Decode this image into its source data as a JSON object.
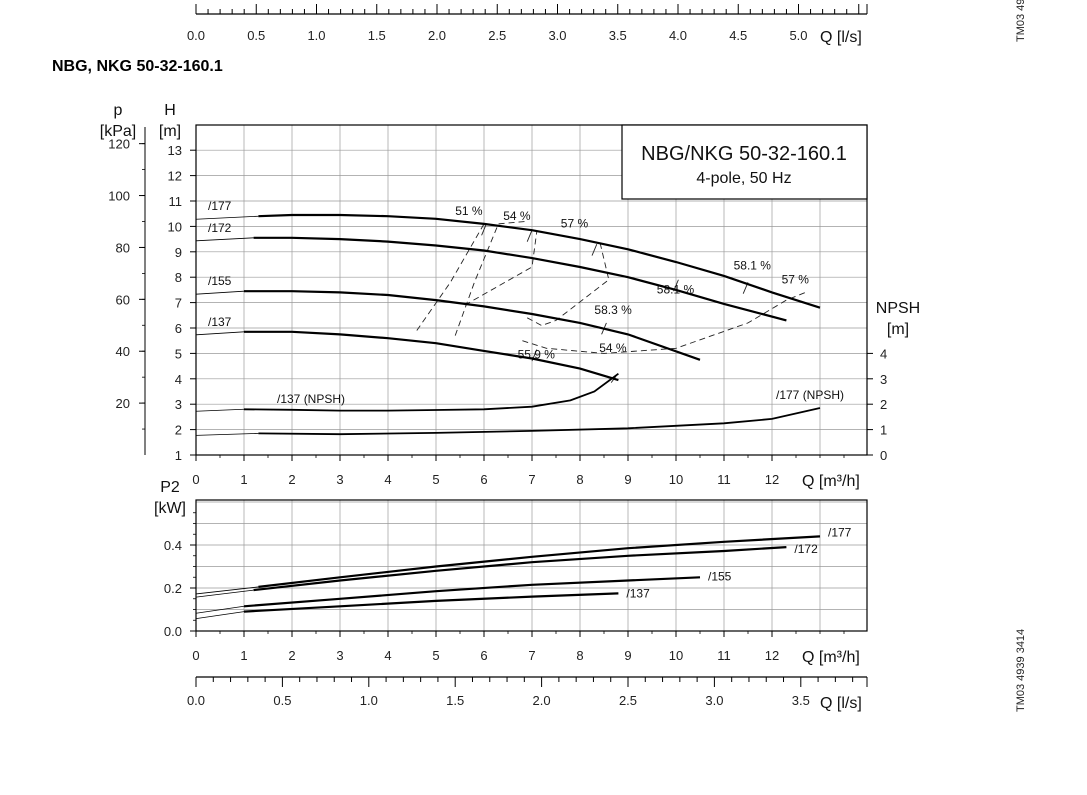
{
  "page": {
    "title": "NBG, NKG 50-32-160.1",
    "top_scale_ticks": [
      "0.0",
      "0.5",
      "1.0",
      "1.5",
      "2.0",
      "2.5",
      "3.0",
      "3.5",
      "4.0",
      "4.5",
      "5.0"
    ],
    "top_scale_unit": "Q [l/s]",
    "watermark_top": "TM03 49",
    "watermark_bottom": "TM03 4939 3414"
  },
  "chart_data": [
    {
      "type": "line",
      "id": "head-npsh",
      "title": "NBG/NKG 50-32-160.1",
      "subtitle": "4-pole, 50 Hz",
      "x": {
        "label": "Q [m³/h]",
        "range": [
          0,
          14
        ],
        "ticks": [
          "0",
          "1",
          "2",
          "3",
          "4",
          "5",
          "6",
          "7",
          "8",
          "9",
          "10",
          "11",
          "12"
        ]
      },
      "y_left_head": {
        "label_line1": "H",
        "label_line2": "[m]",
        "range": [
          1,
          14
        ],
        "ticks": [
          "1",
          "2",
          "3",
          "4",
          "5",
          "6",
          "7",
          "8",
          "9",
          "10",
          "11",
          "12",
          "13"
        ]
      },
      "y_left_pressure": {
        "label_line1": "p",
        "label_line2": "[kPa]",
        "ticks": [
          "20",
          "40",
          "60",
          "80",
          "100",
          "120"
        ]
      },
      "y_right_npsh": {
        "label_line1": "NPSH",
        "label_line2": "[m]",
        "ticks": [
          "0",
          "1",
          "2",
          "3",
          "4"
        ]
      },
      "grid": true,
      "head_curves": [
        {
          "name": "/177",
          "points": [
            [
              1.3,
              10.4
            ],
            [
              2,
              10.45
            ],
            [
              3,
              10.45
            ],
            [
              4,
              10.4
            ],
            [
              5,
              10.3
            ],
            [
              6,
              10.1
            ],
            [
              7,
              9.85
            ],
            [
              8,
              9.5
            ],
            [
              9,
              9.1
            ],
            [
              10,
              8.6
            ],
            [
              11,
              8.05
            ],
            [
              12,
              7.4
            ],
            [
              13,
              6.8
            ]
          ]
        },
        {
          "name": "/172",
          "points": [
            [
              1.2,
              9.55
            ],
            [
              2,
              9.55
            ],
            [
              3,
              9.5
            ],
            [
              4,
              9.4
            ],
            [
              5,
              9.25
            ],
            [
              6,
              9.05
            ],
            [
              7,
              8.75
            ],
            [
              8,
              8.4
            ],
            [
              9,
              8.0
            ],
            [
              10,
              7.5
            ],
            [
              11,
              6.95
            ],
            [
              12.3,
              6.3
            ]
          ]
        },
        {
          "name": "/155",
          "points": [
            [
              1.0,
              7.45
            ],
            [
              2,
              7.45
            ],
            [
              3,
              7.4
            ],
            [
              4,
              7.3
            ],
            [
              5,
              7.1
            ],
            [
              6,
              6.85
            ],
            [
              7,
              6.55
            ],
            [
              8,
              6.2
            ],
            [
              9,
              5.75
            ],
            [
              10.5,
              4.75
            ]
          ]
        },
        {
          "name": "/137",
          "points": [
            [
              1.0,
              5.85
            ],
            [
              2,
              5.85
            ],
            [
              3,
              5.75
            ],
            [
              4,
              5.6
            ],
            [
              5,
              5.4
            ],
            [
              6,
              5.1
            ],
            [
              7,
              4.8
            ],
            [
              8,
              4.4
            ],
            [
              8.8,
              3.95
            ]
          ]
        }
      ],
      "npsh_curves": [
        {
          "name": "/137 (NPSH)",
          "points": [
            [
              1.0,
              1.8
            ],
            [
              2,
              1.78
            ],
            [
              3,
              1.75
            ],
            [
              4,
              1.75
            ],
            [
              5,
              1.77
            ],
            [
              6,
              1.8
            ],
            [
              7,
              1.9
            ],
            [
              7.8,
              2.15
            ],
            [
              8.3,
              2.5
            ],
            [
              8.8,
              3.2
            ]
          ]
        },
        {
          "name": "/177 (NPSH)",
          "points": [
            [
              1.3,
              0.85
            ],
            [
              3,
              0.82
            ],
            [
              5,
              0.87
            ],
            [
              7,
              0.95
            ],
            [
              9,
              1.05
            ],
            [
              11,
              1.25
            ],
            [
              12,
              1.42
            ],
            [
              13,
              1.85
            ]
          ]
        }
      ],
      "efficiency_labels": [
        "51 %",
        "54 %",
        "57 %",
        "58.1 %",
        "57 %",
        "58.1 %",
        "58.3 %",
        "55.9 %",
        "54 %"
      ]
    },
    {
      "type": "line",
      "id": "power",
      "x": {
        "label": "Q [m³/h]",
        "range": [
          0,
          14
        ],
        "ticks": [
          "0",
          "1",
          "2",
          "3",
          "4",
          "5",
          "6",
          "7",
          "8",
          "9",
          "10",
          "11",
          "12"
        ]
      },
      "y": {
        "label_line1": "P2",
        "label_line2": "[kW]",
        "range": [
          0,
          0.6
        ],
        "ticks": [
          "0.0",
          "0.2",
          "0.4"
        ]
      },
      "x2": {
        "label": "Q [l/s]",
        "ticks": [
          "0.0",
          "0.5",
          "1.0",
          "1.5",
          "2.0",
          "2.5",
          "3.0",
          "3.5"
        ]
      },
      "grid": true,
      "series": [
        {
          "name": "/177",
          "points": [
            [
              1.3,
              0.205
            ],
            [
              3,
              0.25
            ],
            [
              5,
              0.3
            ],
            [
              7,
              0.345
            ],
            [
              9,
              0.385
            ],
            [
              11,
              0.415
            ],
            [
              13,
              0.44
            ]
          ]
        },
        {
          "name": "/172",
          "points": [
            [
              1.2,
              0.19
            ],
            [
              3,
              0.235
            ],
            [
              5,
              0.28
            ],
            [
              7,
              0.32
            ],
            [
              9,
              0.35
            ],
            [
              11,
              0.372
            ],
            [
              12.3,
              0.39
            ]
          ]
        },
        {
          "name": "/155",
          "points": [
            [
              1.0,
              0.115
            ],
            [
              3,
              0.15
            ],
            [
              5,
              0.185
            ],
            [
              7,
              0.215
            ],
            [
              9,
              0.235
            ],
            [
              10.5,
              0.25
            ]
          ]
        },
        {
          "name": "/137",
          "points": [
            [
              1.0,
              0.09
            ],
            [
              3,
              0.115
            ],
            [
              5,
              0.14
            ],
            [
              7,
              0.16
            ],
            [
              8.8,
              0.175
            ]
          ]
        }
      ]
    }
  ]
}
